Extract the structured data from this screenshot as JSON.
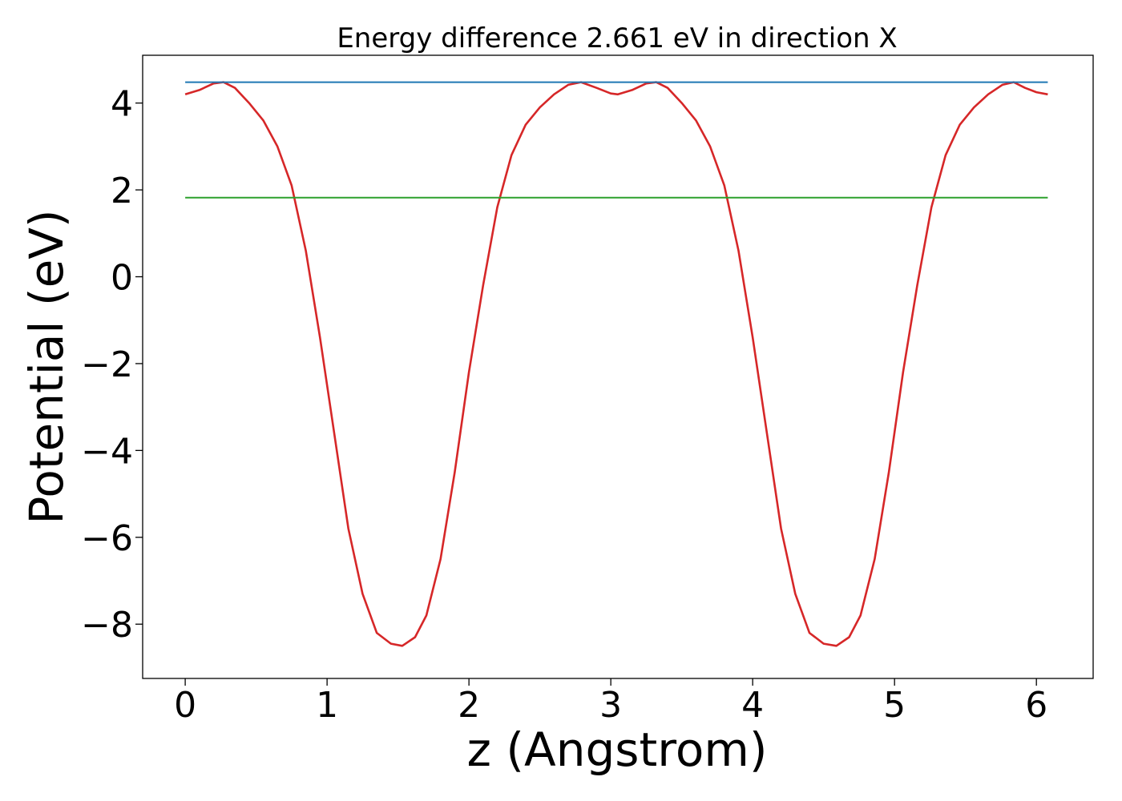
{
  "chart_data": {
    "type": "line",
    "title": "Energy difference 2.661 eV in direction X",
    "xlabel": "z (Angstrom)",
    "ylabel": "Potential (eV)",
    "xlim": [
      -0.3,
      6.4
    ],
    "ylim": [
      -9.25,
      5.1
    ],
    "xticks": [
      "0",
      "1",
      "2",
      "3",
      "4",
      "5",
      "6"
    ],
    "yticks": [
      "4",
      "2",
      "0",
      "−2",
      "−4",
      "−6",
      "−8"
    ],
    "grid": false,
    "legend": "none",
    "series": [
      {
        "color": "#d62728",
        "x": [
          0.0,
          0.1,
          0.2,
          0.27,
          0.35,
          0.45,
          0.55,
          0.65,
          0.75,
          0.85,
          0.95,
          1.05,
          1.15,
          1.25,
          1.35,
          1.45,
          1.53,
          1.62,
          1.7,
          1.8,
          1.9,
          2.0,
          2.1,
          2.2,
          2.3,
          2.4,
          2.5,
          2.6,
          2.7,
          2.79,
          2.9,
          3.0,
          3.05,
          3.15,
          3.25,
          3.32,
          3.4,
          3.5,
          3.6,
          3.7,
          3.8,
          3.9,
          4.0,
          4.1,
          4.2,
          4.3,
          4.4,
          4.5,
          4.59,
          4.68,
          4.76,
          4.86,
          4.96,
          5.06,
          5.16,
          5.26,
          5.36,
          5.46,
          5.56,
          5.66,
          5.76,
          5.84,
          5.92,
          6.0,
          6.08
        ],
        "y": [
          4.2,
          4.3,
          4.45,
          4.48,
          4.35,
          4.0,
          3.6,
          3.0,
          2.1,
          0.6,
          -1.4,
          -3.6,
          -5.8,
          -7.3,
          -8.2,
          -8.45,
          -8.5,
          -8.3,
          -7.8,
          -6.5,
          -4.5,
          -2.2,
          -0.2,
          1.6,
          2.8,
          3.5,
          3.9,
          4.2,
          4.42,
          4.48,
          4.35,
          4.22,
          4.2,
          4.3,
          4.45,
          4.48,
          4.35,
          4.0,
          3.6,
          3.0,
          2.1,
          0.6,
          -1.4,
          -3.6,
          -5.8,
          -7.3,
          -8.2,
          -8.45,
          -8.5,
          -8.3,
          -7.8,
          -6.5,
          -4.5,
          -2.2,
          -0.2,
          1.6,
          2.8,
          3.5,
          3.9,
          4.2,
          4.42,
          4.48,
          4.35,
          4.25,
          4.2
        ]
      },
      {
        "color": "#1f77b4",
        "x": [
          0.0,
          6.08
        ],
        "y": [
          4.48,
          4.48
        ]
      },
      {
        "color": "#2ca02c",
        "x": [
          0.0,
          6.08
        ],
        "y": [
          1.82,
          1.82
        ]
      }
    ]
  }
}
